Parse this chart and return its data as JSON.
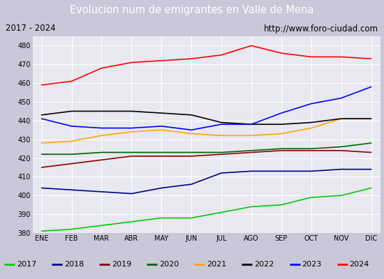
{
  "title": "Evolucion num de emigrantes en Valle de Mena",
  "subtitle_left": "2017 - 2024",
  "subtitle_right": "http://www.foro-ciudad.com",
  "months": [
    "ENE",
    "FEB",
    "MAR",
    "ABR",
    "MAY",
    "JUN",
    "JUL",
    "AGO",
    "SEP",
    "OCT",
    "NOV",
    "DIC"
  ],
  "ylim": [
    380,
    485
  ],
  "yticks": [
    380,
    390,
    400,
    410,
    420,
    430,
    440,
    450,
    460,
    470,
    480
  ],
  "series": {
    "2017": {
      "color": "#00cc00",
      "values": [
        381,
        382,
        384,
        386,
        388,
        388,
        391,
        394,
        395,
        399,
        400,
        404
      ]
    },
    "2018": {
      "color": "#00008b",
      "values": [
        404,
        403,
        402,
        401,
        404,
        406,
        412,
        413,
        413,
        413,
        414,
        414
      ]
    },
    "2019": {
      "color": "#8b0000",
      "values": [
        415,
        417,
        419,
        421,
        421,
        421,
        422,
        423,
        424,
        424,
        424,
        423
      ]
    },
    "2020": {
      "color": "#006400",
      "values": [
        422,
        422,
        423,
        423,
        423,
        423,
        423,
        424,
        425,
        425,
        426,
        428
      ]
    },
    "2021": {
      "color": "#ffa500",
      "values": [
        428,
        429,
        432,
        434,
        435,
        433,
        432,
        432,
        433,
        436,
        441,
        441
      ]
    },
    "2022": {
      "color": "#000000",
      "values": [
        443,
        445,
        445,
        445,
        444,
        443,
        439,
        438,
        438,
        439,
        441,
        441
      ]
    },
    "2023": {
      "color": "#0000ff",
      "values": [
        441,
        437,
        436,
        436,
        437,
        435,
        438,
        438,
        444,
        449,
        452,
        458
      ]
    },
    "2024": {
      "color": "#ff0000",
      "values": [
        459,
        461,
        468,
        471,
        472,
        473,
        475,
        480,
        476,
        474,
        474,
        473
      ]
    }
  },
  "fig_background": "#c8c8d8",
  "plot_background": "#e8e8f0",
  "title_background": "#5588cc",
  "title_color": "white",
  "grid_color": "white",
  "subtitle_box_color": "#d8d8e8",
  "legend_order": [
    "2017",
    "2018",
    "2019",
    "2020",
    "2021",
    "2022",
    "2023",
    "2024"
  ]
}
